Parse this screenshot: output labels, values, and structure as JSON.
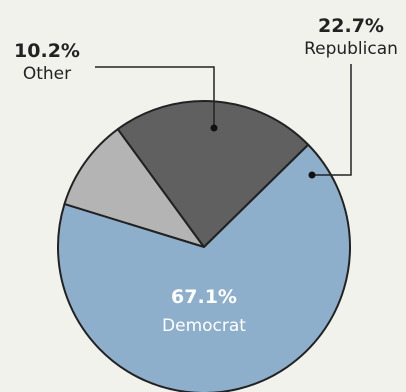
{
  "chart_data": {
    "type": "pie",
    "slices": [
      {
        "label": "Democrat",
        "value": 67.1,
        "value_label": "67.1%",
        "color": "#8eafcc"
      },
      {
        "label": "Republican",
        "value": 22.7,
        "value_label": "22.7%",
        "color": "#606060"
      },
      {
        "label": "Other",
        "value": 10.2,
        "value_label": "10.2%",
        "color": "#b4b4b4"
      }
    ],
    "outline_color": "#222222",
    "label_color_dark": "#222222",
    "label_color_light": "#ffffff",
    "background": "#f2f2ec"
  }
}
